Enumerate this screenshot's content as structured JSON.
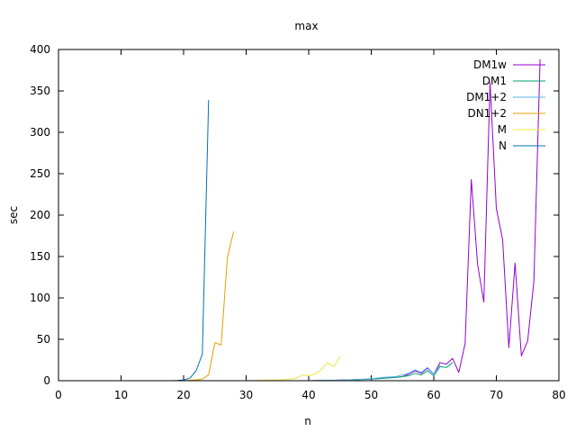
{
  "chart_data": {
    "type": "line",
    "title": "max",
    "xlabel": "n",
    "ylabel": "sec",
    "xlim": [
      0,
      80
    ],
    "ylim": [
      0,
      400
    ],
    "xticks": [
      0,
      10,
      20,
      30,
      40,
      50,
      60,
      70,
      80
    ],
    "yticks": [
      0,
      50,
      100,
      150,
      200,
      250,
      300,
      350,
      400
    ],
    "grid": false,
    "legend_position": "top-right",
    "series": [
      {
        "name": "DM1w",
        "color": "#9400d3",
        "x": [
          0,
          10,
          20,
          30,
          40,
          44,
          46,
          48,
          50,
          52,
          54,
          55,
          56,
          57,
          58,
          59,
          60,
          61,
          62,
          63,
          64,
          65,
          66,
          67,
          68,
          69,
          70,
          71,
          72,
          73,
          74,
          75,
          76,
          77
        ],
        "values": [
          0,
          0,
          0,
          0,
          0,
          0.5,
          1,
          1.5,
          2,
          3,
          4,
          5,
          8,
          12,
          9,
          15,
          8,
          22,
          20,
          27,
          10,
          45,
          243,
          140,
          95,
          360,
          208,
          170,
          40,
          142,
          30,
          48,
          120,
          388
        ]
      },
      {
        "name": "DM1",
        "color": "#009e73",
        "x": [
          0,
          10,
          20,
          30,
          40,
          44,
          46,
          48,
          50,
          52,
          54,
          56,
          57,
          58,
          59,
          60,
          61,
          62,
          63
        ],
        "values": [
          0,
          0,
          0,
          0,
          0,
          0.4,
          0.8,
          1.2,
          2,
          3,
          4,
          6,
          9,
          7,
          12,
          6,
          17,
          16,
          22
        ]
      },
      {
        "name": "DM1+2",
        "color": "#56b4e9",
        "x": [
          0,
          10,
          20,
          30,
          40,
          44,
          46,
          48,
          50,
          52,
          54,
          56,
          57,
          58,
          59,
          60,
          61
        ],
        "values": [
          0,
          0,
          0,
          0,
          0,
          0.5,
          1,
          1.5,
          2.5,
          4,
          5,
          9,
          13,
          10,
          16,
          8,
          19
        ]
      },
      {
        "name": "DN1+2",
        "color": "#e69f00",
        "x": [
          0,
          10,
          20,
          21,
          22,
          23,
          24,
          25,
          26,
          27,
          28
        ],
        "values": [
          0,
          0,
          0,
          0.5,
          1,
          2,
          7,
          46,
          43,
          149,
          180
        ]
      },
      {
        "name": "M",
        "color": "#f0e442",
        "x": [
          0,
          10,
          20,
          30,
          33,
          35,
          37,
          38,
          39,
          40,
          41,
          42,
          43,
          44,
          45
        ],
        "values": [
          0,
          0,
          0,
          0,
          0.5,
          1,
          2,
          3,
          7,
          6,
          8,
          13,
          22,
          17,
          29
        ]
      },
      {
        "name": "N",
        "color": "#0072b2",
        "x": [
          0,
          10,
          18,
          19,
          20,
          21,
          22,
          23,
          24
        ],
        "values": [
          0,
          0,
          0,
          0.3,
          1,
          3,
          12,
          32,
          339
        ]
      }
    ]
  }
}
